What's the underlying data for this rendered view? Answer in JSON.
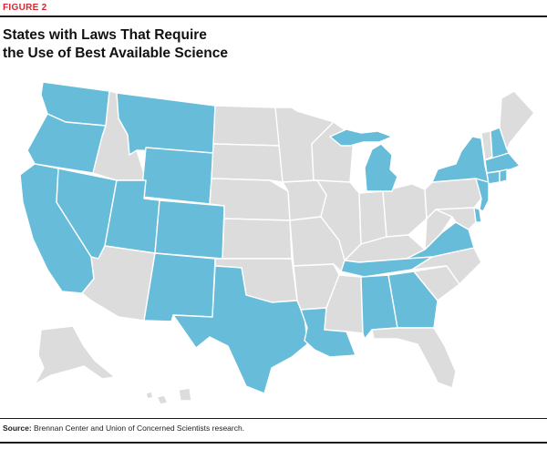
{
  "figure_label": "FIGURE 2",
  "title_lines": [
    "States with Laws That Require",
    "the Use of Best Available Science"
  ],
  "source": {
    "label": "Source:",
    "text": "Brennan Center and Union of Concerned Scientists research."
  },
  "colors": {
    "highlight": "#66bcd9",
    "other": "#dcdcdc",
    "border": "#ffffff",
    "figure_label": "#d8262e"
  },
  "states_with_law": [
    "WA",
    "OR",
    "CA",
    "NV",
    "MT",
    "WY",
    "UT",
    "CO",
    "NM",
    "TX",
    "LA",
    "MI",
    "TN",
    "AL",
    "GA",
    "VA",
    "NY",
    "NJ",
    "DE",
    "CT",
    "RI",
    "MA",
    "NH"
  ]
}
